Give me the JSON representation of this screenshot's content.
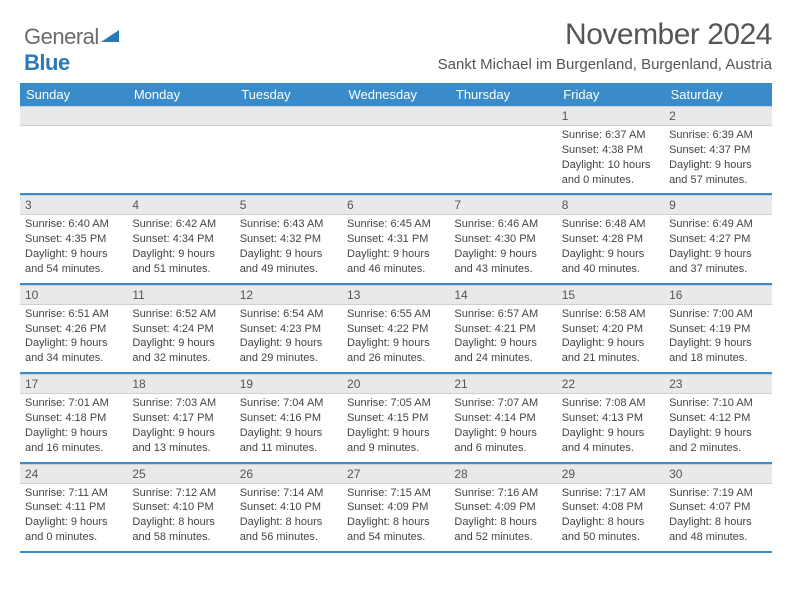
{
  "logo": {
    "word1": "General",
    "word2": "Blue"
  },
  "header": {
    "month_title": "November 2024",
    "location": "Sankt Michael im Burgenland, Burgenland, Austria"
  },
  "colors": {
    "header_bg": "#3a8bc9",
    "header_text": "#ffffff",
    "daynum_bg": "#e9e9e9",
    "text": "#555555",
    "body_text": "#444444",
    "logo_gray": "#6b6b6b",
    "logo_blue": "#2a7ab9"
  },
  "weekdays": [
    "Sunday",
    "Monday",
    "Tuesday",
    "Wednesday",
    "Thursday",
    "Friday",
    "Saturday"
  ],
  "weeks": [
    [
      {
        "empty": true
      },
      {
        "empty": true
      },
      {
        "empty": true
      },
      {
        "empty": true
      },
      {
        "empty": true
      },
      {
        "num": "1",
        "sunrise": "Sunrise: 6:37 AM",
        "sunset": "Sunset: 4:38 PM",
        "daylight1": "Daylight: 10 hours",
        "daylight2": "and 0 minutes."
      },
      {
        "num": "2",
        "sunrise": "Sunrise: 6:39 AM",
        "sunset": "Sunset: 4:37 PM",
        "daylight1": "Daylight: 9 hours",
        "daylight2": "and 57 minutes."
      }
    ],
    [
      {
        "num": "3",
        "sunrise": "Sunrise: 6:40 AM",
        "sunset": "Sunset: 4:35 PM",
        "daylight1": "Daylight: 9 hours",
        "daylight2": "and 54 minutes."
      },
      {
        "num": "4",
        "sunrise": "Sunrise: 6:42 AM",
        "sunset": "Sunset: 4:34 PM",
        "daylight1": "Daylight: 9 hours",
        "daylight2": "and 51 minutes."
      },
      {
        "num": "5",
        "sunrise": "Sunrise: 6:43 AM",
        "sunset": "Sunset: 4:32 PM",
        "daylight1": "Daylight: 9 hours",
        "daylight2": "and 49 minutes."
      },
      {
        "num": "6",
        "sunrise": "Sunrise: 6:45 AM",
        "sunset": "Sunset: 4:31 PM",
        "daylight1": "Daylight: 9 hours",
        "daylight2": "and 46 minutes."
      },
      {
        "num": "7",
        "sunrise": "Sunrise: 6:46 AM",
        "sunset": "Sunset: 4:30 PM",
        "daylight1": "Daylight: 9 hours",
        "daylight2": "and 43 minutes."
      },
      {
        "num": "8",
        "sunrise": "Sunrise: 6:48 AM",
        "sunset": "Sunset: 4:28 PM",
        "daylight1": "Daylight: 9 hours",
        "daylight2": "and 40 minutes."
      },
      {
        "num": "9",
        "sunrise": "Sunrise: 6:49 AM",
        "sunset": "Sunset: 4:27 PM",
        "daylight1": "Daylight: 9 hours",
        "daylight2": "and 37 minutes."
      }
    ],
    [
      {
        "num": "10",
        "sunrise": "Sunrise: 6:51 AM",
        "sunset": "Sunset: 4:26 PM",
        "daylight1": "Daylight: 9 hours",
        "daylight2": "and 34 minutes."
      },
      {
        "num": "11",
        "sunrise": "Sunrise: 6:52 AM",
        "sunset": "Sunset: 4:24 PM",
        "daylight1": "Daylight: 9 hours",
        "daylight2": "and 32 minutes."
      },
      {
        "num": "12",
        "sunrise": "Sunrise: 6:54 AM",
        "sunset": "Sunset: 4:23 PM",
        "daylight1": "Daylight: 9 hours",
        "daylight2": "and 29 minutes."
      },
      {
        "num": "13",
        "sunrise": "Sunrise: 6:55 AM",
        "sunset": "Sunset: 4:22 PM",
        "daylight1": "Daylight: 9 hours",
        "daylight2": "and 26 minutes."
      },
      {
        "num": "14",
        "sunrise": "Sunrise: 6:57 AM",
        "sunset": "Sunset: 4:21 PM",
        "daylight1": "Daylight: 9 hours",
        "daylight2": "and 24 minutes."
      },
      {
        "num": "15",
        "sunrise": "Sunrise: 6:58 AM",
        "sunset": "Sunset: 4:20 PM",
        "daylight1": "Daylight: 9 hours",
        "daylight2": "and 21 minutes."
      },
      {
        "num": "16",
        "sunrise": "Sunrise: 7:00 AM",
        "sunset": "Sunset: 4:19 PM",
        "daylight1": "Daylight: 9 hours",
        "daylight2": "and 18 minutes."
      }
    ],
    [
      {
        "num": "17",
        "sunrise": "Sunrise: 7:01 AM",
        "sunset": "Sunset: 4:18 PM",
        "daylight1": "Daylight: 9 hours",
        "daylight2": "and 16 minutes."
      },
      {
        "num": "18",
        "sunrise": "Sunrise: 7:03 AM",
        "sunset": "Sunset: 4:17 PM",
        "daylight1": "Daylight: 9 hours",
        "daylight2": "and 13 minutes."
      },
      {
        "num": "19",
        "sunrise": "Sunrise: 7:04 AM",
        "sunset": "Sunset: 4:16 PM",
        "daylight1": "Daylight: 9 hours",
        "daylight2": "and 11 minutes."
      },
      {
        "num": "20",
        "sunrise": "Sunrise: 7:05 AM",
        "sunset": "Sunset: 4:15 PM",
        "daylight1": "Daylight: 9 hours",
        "daylight2": "and 9 minutes."
      },
      {
        "num": "21",
        "sunrise": "Sunrise: 7:07 AM",
        "sunset": "Sunset: 4:14 PM",
        "daylight1": "Daylight: 9 hours",
        "daylight2": "and 6 minutes."
      },
      {
        "num": "22",
        "sunrise": "Sunrise: 7:08 AM",
        "sunset": "Sunset: 4:13 PM",
        "daylight1": "Daylight: 9 hours",
        "daylight2": "and 4 minutes."
      },
      {
        "num": "23",
        "sunrise": "Sunrise: 7:10 AM",
        "sunset": "Sunset: 4:12 PM",
        "daylight1": "Daylight: 9 hours",
        "daylight2": "and 2 minutes."
      }
    ],
    [
      {
        "num": "24",
        "sunrise": "Sunrise: 7:11 AM",
        "sunset": "Sunset: 4:11 PM",
        "daylight1": "Daylight: 9 hours",
        "daylight2": "and 0 minutes."
      },
      {
        "num": "25",
        "sunrise": "Sunrise: 7:12 AM",
        "sunset": "Sunset: 4:10 PM",
        "daylight1": "Daylight: 8 hours",
        "daylight2": "and 58 minutes."
      },
      {
        "num": "26",
        "sunrise": "Sunrise: 7:14 AM",
        "sunset": "Sunset: 4:10 PM",
        "daylight1": "Daylight: 8 hours",
        "daylight2": "and 56 minutes."
      },
      {
        "num": "27",
        "sunrise": "Sunrise: 7:15 AM",
        "sunset": "Sunset: 4:09 PM",
        "daylight1": "Daylight: 8 hours",
        "daylight2": "and 54 minutes."
      },
      {
        "num": "28",
        "sunrise": "Sunrise: 7:16 AM",
        "sunset": "Sunset: 4:09 PM",
        "daylight1": "Daylight: 8 hours",
        "daylight2": "and 52 minutes."
      },
      {
        "num": "29",
        "sunrise": "Sunrise: 7:17 AM",
        "sunset": "Sunset: 4:08 PM",
        "daylight1": "Daylight: 8 hours",
        "daylight2": "and 50 minutes."
      },
      {
        "num": "30",
        "sunrise": "Sunrise: 7:19 AM",
        "sunset": "Sunset: 4:07 PM",
        "daylight1": "Daylight: 8 hours",
        "daylight2": "and 48 minutes."
      }
    ]
  ]
}
